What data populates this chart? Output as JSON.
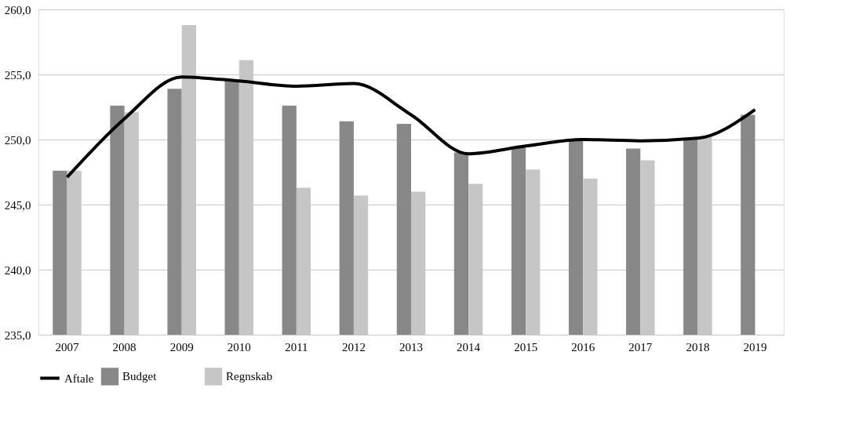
{
  "chart_data": {
    "type": "bar",
    "categories": [
      "2007",
      "2008",
      "2009",
      "2010",
      "2011",
      "2012",
      "2013",
      "2014",
      "2015",
      "2016",
      "2017",
      "2018",
      "2019"
    ],
    "series": [
      {
        "name": "Budget",
        "color": "#888888",
        "values": [
          247.6,
          252.6,
          253.9,
          254.6,
          252.6,
          251.4,
          251.2,
          249.0,
          249.4,
          249.9,
          249.3,
          250.0,
          251.9
        ]
      },
      {
        "name": "Regnskab",
        "color": "#c6c6c6",
        "values": [
          247.6,
          252.1,
          258.8,
          256.1,
          246.3,
          245.7,
          246.0,
          246.6,
          247.7,
          247.0,
          248.4,
          250.2,
          null
        ]
      },
      {
        "name": "Aftale",
        "type": "line",
        "color": "#000000",
        "values": [
          247.1,
          251.6,
          254.8,
          254.5,
          254.1,
          254.3,
          251.9,
          248.9,
          249.5,
          250.0,
          249.9,
          250.1,
          252.3
        ]
      }
    ],
    "ylim": [
      235,
      260
    ],
    "yticks": [
      {
        "value": 235,
        "label": "235,0"
      },
      {
        "value": 240,
        "label": "240,0"
      },
      {
        "value": 245,
        "label": "245,0"
      },
      {
        "value": 250,
        "label": "250,0"
      },
      {
        "value": 255,
        "label": "255,0"
      },
      {
        "value": 260,
        "label": "260,0"
      }
    ],
    "grid": "y",
    "legend": "bottom",
    "marker": "none",
    "line_style": "solid"
  }
}
